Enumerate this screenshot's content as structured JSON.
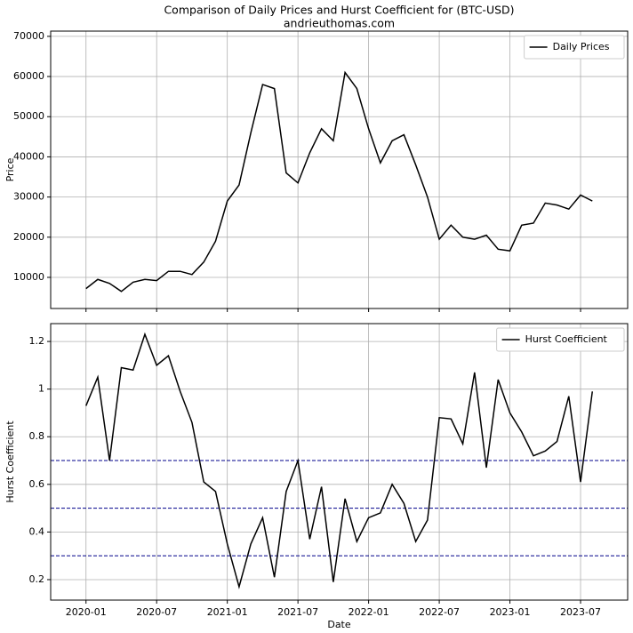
{
  "chart_data": [
    {
      "type": "line",
      "title": "Comparison of Daily Prices and Hurst Coefficient for (BTC-USD)",
      "subtitle": "andrieuthomas.com",
      "ylabel": "Price",
      "sharex": 1,
      "x": [
        "2020-01",
        "2020-02",
        "2020-03",
        "2020-04",
        "2020-05",
        "2020-06",
        "2020-07",
        "2020-08",
        "2020-09",
        "2020-10",
        "2020-11",
        "2020-12",
        "2021-01",
        "2021-02",
        "2021-03",
        "2021-04",
        "2021-05",
        "2021-06",
        "2021-07",
        "2021-08",
        "2021-09",
        "2021-10",
        "2021-11",
        "2021-12",
        "2022-01",
        "2022-02",
        "2022-03",
        "2022-04",
        "2022-05",
        "2022-06",
        "2022-07",
        "2022-08",
        "2022-09",
        "2022-10",
        "2022-11",
        "2022-12",
        "2023-01",
        "2023-02",
        "2023-03",
        "2023-04",
        "2023-05",
        "2023-06",
        "2023-07",
        "2023-08"
      ],
      "series": [
        {
          "name": "Daily Prices",
          "color": "#000000",
          "values": [
            7200,
            9500,
            8500,
            6500,
            8800,
            9500,
            9200,
            11500,
            11500,
            10700,
            13800,
            19000,
            29000,
            33000,
            46000,
            58000,
            57000,
            36000,
            33500,
            41000,
            47000,
            44000,
            61000,
            57000,
            47000,
            38500,
            44000,
            45500,
            38000,
            30000,
            19500,
            23000,
            20000,
            19500,
            20500,
            17000,
            16600,
            23000,
            23500,
            28500,
            28000,
            27000,
            30500,
            29000
          ]
        }
      ],
      "xlim": [
        "2019-10",
        "2023-11"
      ],
      "ylim": [
        2250,
        71300
      ],
      "yticks": [
        10000,
        20000,
        30000,
        40000,
        50000,
        60000,
        70000
      ],
      "grid": true,
      "legend": "upper right"
    },
    {
      "type": "line",
      "xlabel": "Date",
      "ylabel": "Hurst Coefficient",
      "x": [
        "2020-01",
        "2020-02",
        "2020-03",
        "2020-04",
        "2020-05",
        "2020-06",
        "2020-07",
        "2020-08",
        "2020-09",
        "2020-10",
        "2020-11",
        "2020-12",
        "2021-01",
        "2021-02",
        "2021-03",
        "2021-04",
        "2021-05",
        "2021-06",
        "2021-07",
        "2021-08",
        "2021-09",
        "2021-10",
        "2021-11",
        "2021-12",
        "2022-01",
        "2022-02",
        "2022-03",
        "2022-04",
        "2022-05",
        "2022-06",
        "2022-07",
        "2022-08",
        "2022-09",
        "2022-10",
        "2022-11",
        "2022-12",
        "2023-01",
        "2023-02",
        "2023-03",
        "2023-04",
        "2023-05",
        "2023-06",
        "2023-07",
        "2023-08"
      ],
      "series": [
        {
          "name": "Hurst Coefficient",
          "color": "#000000",
          "values": [
            0.93,
            1.05,
            0.7,
            1.09,
            1.08,
            1.23,
            1.1,
            1.14,
            0.99,
            0.86,
            0.61,
            0.57,
            0.35,
            0.17,
            0.35,
            0.46,
            0.21,
            0.57,
            0.7,
            0.37,
            0.59,
            0.19,
            0.54,
            0.36,
            0.46,
            0.48,
            0.6,
            0.52,
            0.36,
            0.45,
            0.88,
            0.875,
            0.77,
            1.07,
            0.67,
            1.04,
            0.9,
            0.82,
            0.72,
            0.74,
            0.78,
            0.97,
            0.61,
            0.99
          ]
        }
      ],
      "reference_lines": {
        "values": [
          0.3,
          0.5,
          0.7
        ],
        "color": "#00008b"
      },
      "xlim": [
        "2019-10",
        "2023-11"
      ],
      "xticks": [
        "2020-01",
        "2020-07",
        "2021-01",
        "2021-07",
        "2022-01",
        "2022-07",
        "2023-01",
        "2023-07"
      ],
      "ylim": [
        0.114,
        1.275
      ],
      "yticks": [
        0.2,
        0.4,
        0.6,
        0.8,
        1.0,
        1.2
      ],
      "grid": true,
      "legend": "upper right"
    }
  ]
}
